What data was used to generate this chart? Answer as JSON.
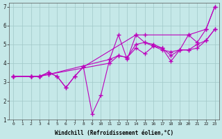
{
  "xlabel": "Windchill (Refroidissement éolien,°C)",
  "xlim": [
    -0.5,
    23.5
  ],
  "ylim": [
    1,
    7.2
  ],
  "xticks": [
    0,
    1,
    2,
    3,
    4,
    5,
    6,
    7,
    8,
    9,
    10,
    11,
    12,
    13,
    14,
    15,
    16,
    17,
    18,
    19,
    20,
    21,
    22,
    23
  ],
  "yticks": [
    1,
    2,
    3,
    4,
    5,
    6,
    7
  ],
  "bg_color": "#c5e8e8",
  "grid_color": "#a0c8c8",
  "line_color": "#bb00bb",
  "lines": [
    {
      "x": [
        0,
        2,
        3,
        4,
        5,
        6,
        7,
        8,
        14,
        15,
        20,
        22,
        23
      ],
      "y": [
        3.3,
        3.3,
        3.3,
        3.5,
        3.3,
        2.7,
        3.3,
        3.8,
        5.5,
        5.5,
        5.5,
        5.8,
        7.0
      ]
    },
    {
      "x": [
        0,
        2,
        3,
        4,
        5,
        6,
        7,
        8,
        9,
        10,
        11,
        12,
        13,
        14,
        15,
        16,
        17,
        18,
        19,
        20,
        21,
        22,
        23
      ],
      "y": [
        3.3,
        3.3,
        3.3,
        3.5,
        3.3,
        2.7,
        3.3,
        3.8,
        1.3,
        2.3,
        4.2,
        5.5,
        4.2,
        5.5,
        5.1,
        5.0,
        4.8,
        4.1,
        4.7,
        5.5,
        5.1,
        5.8,
        7.0
      ]
    },
    {
      "x": [
        0,
        2,
        3,
        4,
        11,
        12,
        13,
        14,
        15,
        16,
        17,
        18,
        19,
        20,
        21,
        22,
        23
      ],
      "y": [
        3.3,
        3.3,
        3.3,
        3.4,
        4.2,
        4.4,
        4.3,
        5.0,
        5.1,
        4.9,
        4.8,
        4.4,
        4.7,
        4.7,
        5.0,
        5.2,
        5.8
      ]
    },
    {
      "x": [
        0,
        2,
        3,
        4,
        11,
        12,
        13,
        14,
        15,
        16,
        17,
        18,
        19,
        20,
        21,
        22,
        23
      ],
      "y": [
        3.3,
        3.3,
        3.3,
        3.4,
        4.0,
        4.4,
        4.3,
        4.8,
        4.5,
        4.9,
        4.7,
        4.6,
        4.7,
        4.7,
        4.8,
        5.2,
        5.8
      ]
    }
  ]
}
